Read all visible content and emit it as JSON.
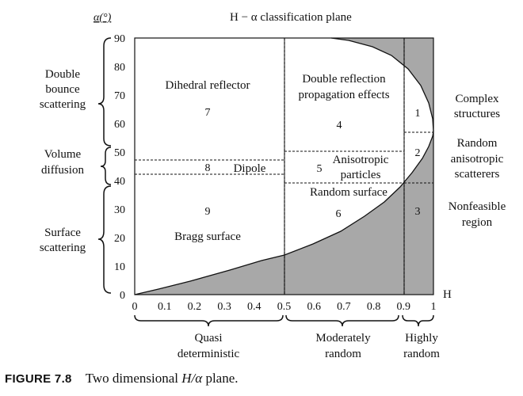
{
  "title": "H − α classification plane",
  "y_axis": {
    "label": "α(°)",
    "ticks": [
      "0",
      "10",
      "20",
      "30",
      "40",
      "50",
      "60",
      "70",
      "80",
      "90"
    ]
  },
  "x_axis": {
    "label": "H",
    "ticks": [
      "0",
      "0.1",
      "0.2",
      "0.3",
      "0.4",
      "0.5",
      "0.6",
      "0.7",
      "0.8",
      "0.9",
      "1"
    ]
  },
  "left_groups": [
    {
      "lines": [
        "Double",
        "bounce",
        "scattering"
      ]
    },
    {
      "lines": [
        "Volume",
        "diffusion"
      ]
    },
    {
      "lines": [
        "Surface",
        "scattering"
      ]
    }
  ],
  "right_labels": [
    {
      "lines": [
        "Complex",
        "structures"
      ]
    },
    {
      "lines": [
        "Random",
        "anisotropic",
        "scatterers"
      ]
    },
    {
      "lines": [
        "Nonfeasible",
        "region"
      ]
    }
  ],
  "bottom_groups": [
    {
      "lines": [
        "Quasi",
        "deterministic"
      ]
    },
    {
      "lines": [
        "Moderately",
        "random"
      ]
    },
    {
      "lines": [
        "Highly",
        "random"
      ]
    }
  ],
  "zones": {
    "z1": "1",
    "z2": "2",
    "z3": "3",
    "z4": "4",
    "z5": "5",
    "z6": "6",
    "z7": "7",
    "z8": "8",
    "z9": "9"
  },
  "zone_texts": {
    "dihedral": "Dihedral reflector",
    "double_reflection_1": "Double reflection",
    "double_reflection_2": "propagation effects",
    "dipole": "Dipole",
    "anisotropic_1": "Anisotropic",
    "anisotropic_2": "particles",
    "random_surface": "Random surface",
    "bragg": "Bragg surface"
  },
  "caption": {
    "label": "FIGURE 7.8",
    "text_pre": "Two dimensional ",
    "text_math": "H/α",
    "text_post": " plane."
  },
  "colors": {
    "shade": "#a8a8a8",
    "line": "#111111"
  }
}
